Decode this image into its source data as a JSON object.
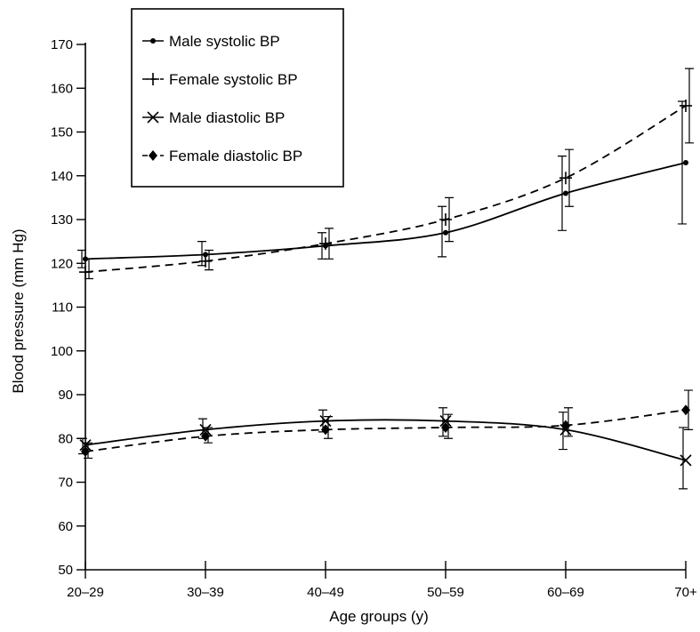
{
  "chart_data": {
    "type": "line",
    "xlabel": "Age groups (y)",
    "ylabel": "Blood pressure (mm Hg)",
    "ylim": [
      50,
      170
    ],
    "yticks": [
      50,
      60,
      70,
      80,
      90,
      100,
      110,
      120,
      130,
      140,
      150,
      160,
      170
    ],
    "categories": [
      "20–29",
      "30–39",
      "40–49",
      "50–59",
      "60–69",
      "70+"
    ],
    "grid": false,
    "legend_position": "top-left",
    "series": [
      {
        "name": "Male systolic BP",
        "marker": "dot",
        "dash": "solid",
        "values": [
          121,
          122,
          124,
          127,
          136,
          143
        ],
        "error_low": [
          119,
          119.5,
          121,
          121.5,
          127.5,
          129
        ],
        "error_high": [
          123,
          125,
          127,
          133,
          144.5,
          157
        ]
      },
      {
        "name": "Female systolic BP",
        "marker": "plus",
        "dash": "dashed",
        "values": [
          118,
          120.5,
          124.5,
          130,
          139.5,
          156
        ],
        "error_low": [
          116.5,
          118.5,
          121,
          125,
          133,
          147.5
        ],
        "error_high": [
          121,
          123,
          128,
          135,
          146,
          164.5
        ]
      },
      {
        "name": "Male diastolic BP",
        "marker": "x",
        "dash": "solid",
        "values": [
          78.5,
          82,
          84,
          84,
          82,
          75
        ],
        "error_low": [
          76.5,
          80,
          81.5,
          80.5,
          77.5,
          68.5
        ],
        "error_high": [
          80,
          84.5,
          86.5,
          87,
          86,
          82.5
        ]
      },
      {
        "name": "Female diastolic BP",
        "marker": "diamond",
        "dash": "dashed",
        "values": [
          77,
          80.5,
          82,
          82.5,
          83,
          86.5
        ],
        "error_low": [
          75.5,
          79,
          80,
          80,
          80.5,
          82
        ],
        "error_high": [
          79,
          82.5,
          85,
          85.5,
          87,
          91
        ]
      }
    ]
  }
}
